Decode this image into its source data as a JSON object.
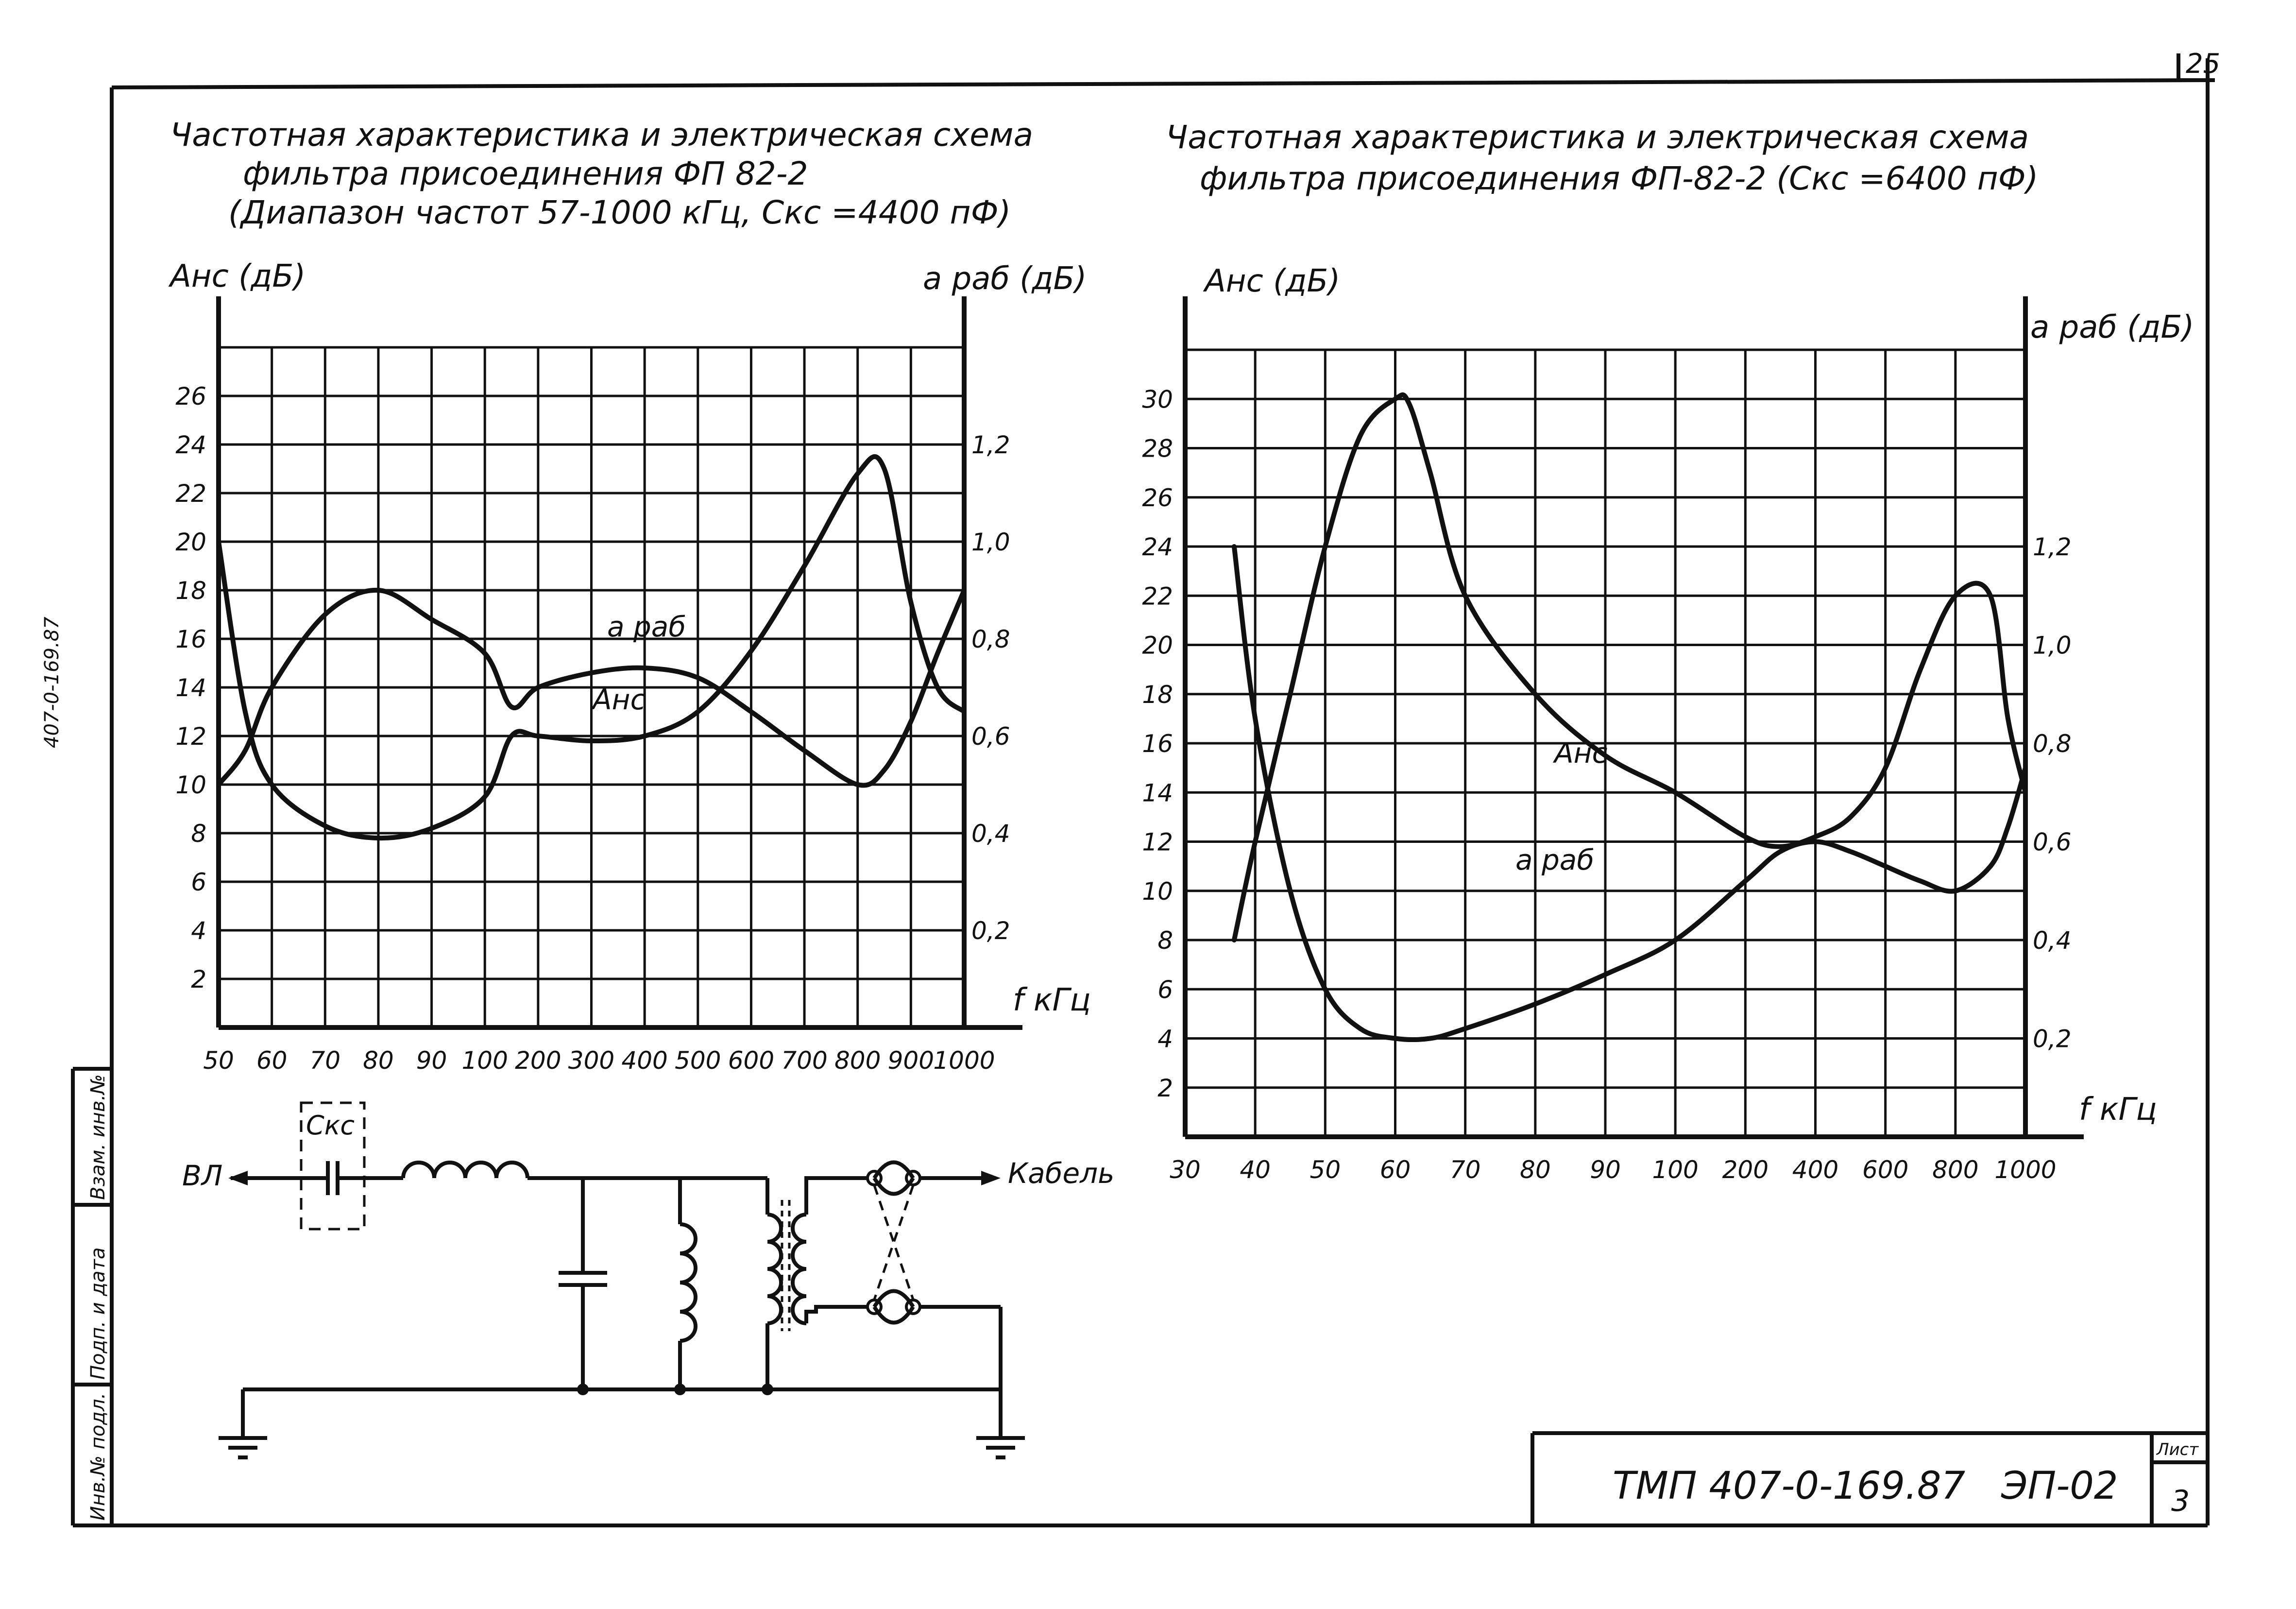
{
  "sheet": {
    "page_corner": "25",
    "side_labels": [
      "Инв.№ подл.",
      "Подп. и дата",
      "Взам. инв.№"
    ],
    "side_code": "407-0-169.87",
    "stamp_code": "ТМП 407-0-169.87",
    "stamp_sheet_code": "ЭП-02",
    "stamp_sheet_label": "Лист",
    "stamp_sheet_number": "3"
  },
  "left_title": {
    "line1": "Частотная характеристика и электрическая схема",
    "line2": "фильтра присоединения ФП 82-2",
    "line3": "(Диапазон частот 57-1000 кГц, Скс =4400 пФ)"
  },
  "right_title": {
    "line1": "Частотная характеристика и электрическая схема",
    "line2": "фильтра присоединения ФП-82-2 (Скс =6400 пФ)"
  },
  "circuit": {
    "vl_label": "ВЛ",
    "cable_label": "Кабель",
    "cap_label": "Скс"
  },
  "chart_data": [
    {
      "type": "line",
      "x_scale": "categorical",
      "x_ticks": [
        "50",
        "60",
        "70",
        "80",
        "90",
        "100",
        "200",
        "300",
        "400",
        "500",
        "600",
        "700",
        "800",
        "900",
        "1000"
      ],
      "xlabel": "f кГц",
      "ylabel_left": "Анс (дБ)",
      "ylabel_right": "а раб (дБ)",
      "ylim_left": [
        0,
        28
      ],
      "ylim_right": [
        0,
        1.4
      ],
      "y_ticks_left": [
        "2",
        "4",
        "6",
        "8",
        "10",
        "12",
        "14",
        "16",
        "18",
        "20",
        "22",
        "24",
        "26"
      ],
      "y_ticks_right": [
        "0,2",
        "0,4",
        "0,6",
        "0,8",
        "1,0",
        "1,2"
      ],
      "grid": true,
      "series": [
        {
          "name": "Анс",
          "axis": "left",
          "x": [
            50,
            55,
            60,
            70,
            80,
            90,
            100,
            150,
            200,
            300,
            400,
            500,
            600,
            700,
            800,
            850,
            900,
            950,
            1000
          ],
          "y": [
            20,
            13,
            10,
            8.3,
            7.8,
            8.2,
            9.5,
            12,
            12,
            11.8,
            12,
            13,
            15.5,
            19,
            22.8,
            23,
            17.5,
            14,
            13
          ]
        },
        {
          "name": "а раб",
          "axis": "right",
          "x": [
            50,
            55,
            60,
            70,
            80,
            90,
            100,
            150,
            200,
            300,
            400,
            500,
            600,
            700,
            800,
            850,
            900,
            950,
            1000
          ],
          "y": [
            0.5,
            0.57,
            0.7,
            0.85,
            0.9,
            0.84,
            0.77,
            0.66,
            0.7,
            0.73,
            0.74,
            0.72,
            0.65,
            0.57,
            0.5,
            0.53,
            0.63,
            0.77,
            0.9
          ]
        }
      ]
    },
    {
      "type": "line",
      "x_scale": "categorical",
      "x_ticks": [
        "30",
        "40",
        "50",
        "60",
        "70",
        "80",
        "90",
        "100",
        "200",
        "400",
        "600",
        "800",
        "1000"
      ],
      "xlabel": "f кГц",
      "ylabel_left": "Анс (дБ)",
      "ylabel_right": "а раб (дБ)",
      "ylim_left": [
        0,
        32
      ],
      "ylim_right": [
        0,
        1.6
      ],
      "y_ticks_left": [
        "2",
        "4",
        "6",
        "8",
        "10",
        "12",
        "14",
        "16",
        "18",
        "20",
        "22",
        "24",
        "26",
        "28",
        "30"
      ],
      "y_ticks_right": [
        "0,2",
        "0,4",
        "0,6",
        "0,8",
        "1,0",
        "1,2"
      ],
      "grid": true,
      "series": [
        {
          "name": "Анс",
          "axis": "left",
          "x": [
            37,
            40,
            45,
            50,
            55,
            60,
            62,
            65,
            70,
            80,
            90,
            100,
            200,
            300,
            400,
            500,
            600,
            700,
            800,
            900,
            950,
            1000
          ],
          "y": [
            8,
            12,
            18,
            24,
            28.5,
            30,
            29.8,
            27,
            22,
            18,
            15.5,
            14,
            12.2,
            11.8,
            12.2,
            13,
            15,
            19,
            22,
            22,
            17,
            14
          ]
        },
        {
          "name": "а раб",
          "axis": "right",
          "x": [
            37,
            40,
            45,
            50,
            55,
            60,
            65,
            70,
            80,
            90,
            100,
            200,
            300,
            400,
            500,
            600,
            700,
            800,
            900,
            950,
            1000
          ],
          "y": [
            1.2,
            0.85,
            0.5,
            0.3,
            0.22,
            0.2,
            0.2,
            0.22,
            0.27,
            0.33,
            0.4,
            0.52,
            0.58,
            0.6,
            0.58,
            0.55,
            0.52,
            0.5,
            0.55,
            0.63,
            0.75
          ]
        }
      ]
    }
  ]
}
